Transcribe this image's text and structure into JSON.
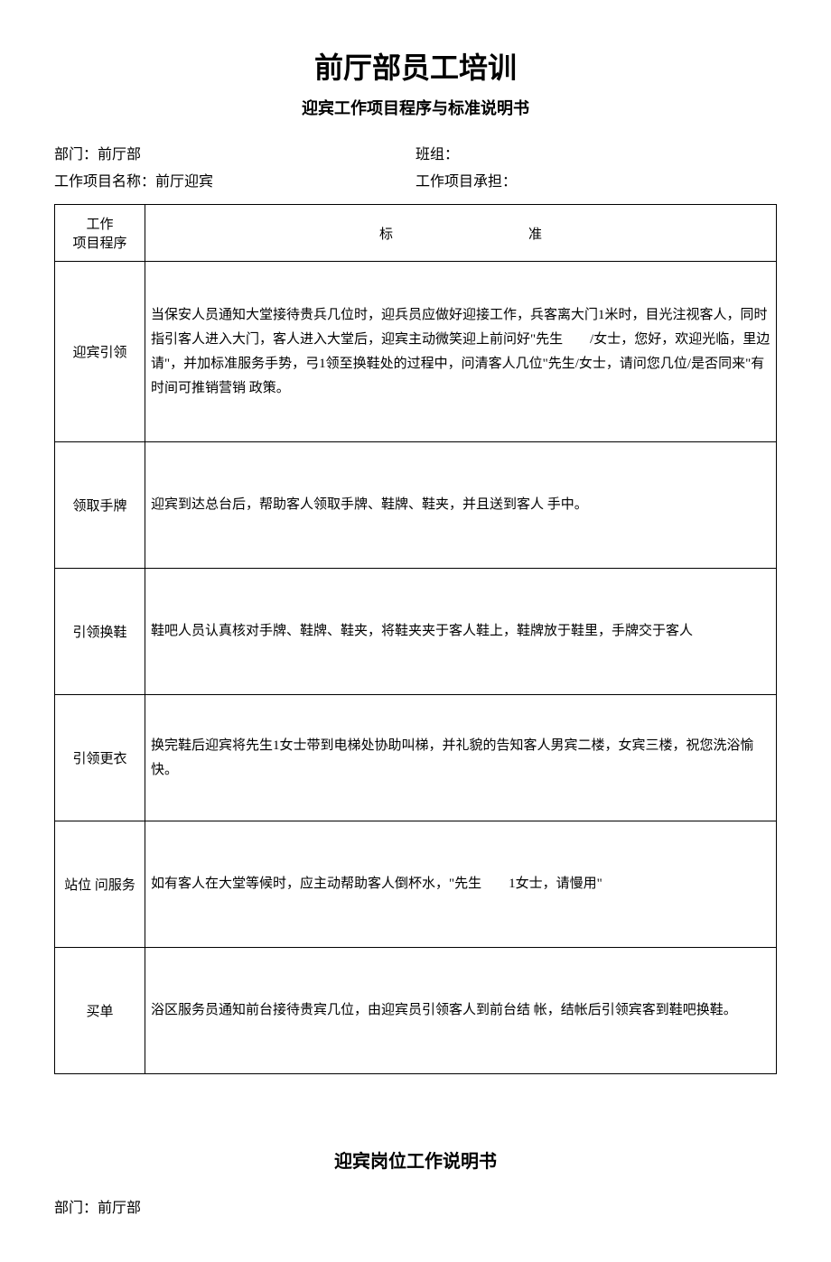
{
  "title": "前厅部员工培训",
  "subtitle": "迎宾工作项目程序与标准说明书",
  "info": {
    "dept_label": "部门：前厅部",
    "team_label": "班组：",
    "project_name_label": "工作项目名称：前厅迎宾",
    "project_owner_label": "工作项目承担："
  },
  "table": {
    "header_col1_line1": "工作",
    "header_col1_line2": "项目程序",
    "header_col2": "标　　　　　　　　　　准",
    "rows": [
      {
        "proc": "迎宾引领",
        "std": "当保安人员通知大堂接待贵兵几位时，迎兵员应做好迎接工作，兵客离大门1米时，目光注视客人，同时指引客人进入大门，客人进入大堂后，迎宾主动微笑迎上前问好\"先生　　/女士，您好，欢迎光临，里边请\"，并加标准服务手势，弓1领至换鞋处的过程中，问清客人几位\"先生/女士，请问您几位/是否同来\"有时间可推销营销 政策。"
      },
      {
        "proc": "领取手牌",
        "std": "迎宾到达总台后，帮助客人领取手牌、鞋牌、鞋夹，并且送到客人 手中。"
      },
      {
        "proc": "引领换鞋",
        "std": "鞋吧人员认真核对手牌、鞋牌、鞋夹，将鞋夹夹于客人鞋上，鞋牌放于鞋里，手牌交于客人"
      },
      {
        "proc": "引领更衣",
        "std": "换完鞋后迎宾将先生1女士带到电梯处协助叫梯，并礼貌的告知客人男宾二楼，女宾三楼，祝您洗浴愉快。"
      },
      {
        "proc": "站位 问服务",
        "std": "如有客人在大堂等候时，应主动帮助客人倒杯水，\"先生　　1女士，请慢用\""
      },
      {
        "proc": "买单",
        "std": "浴区服务员通知前台接待贵宾几位，由迎宾员引领客人到前台结 帐，结帐后引领宾客到鞋吧换鞋。"
      }
    ]
  },
  "section2": {
    "title": "迎宾岗位工作说明书",
    "dept": "部门：前厅部"
  },
  "styling": {
    "background_color": "#ffffff",
    "text_color": "#000000",
    "border_color": "#000000",
    "title_fontsize": 32,
    "subtitle_fontsize": 18,
    "body_fontsize": 16,
    "table_fontsize": 15,
    "font_family": "SimSun"
  }
}
